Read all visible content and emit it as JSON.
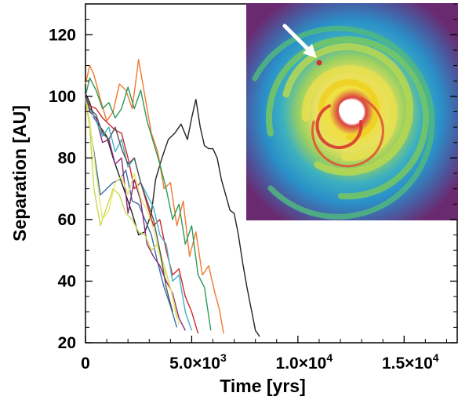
{
  "chart_data": {
    "type": "line",
    "xlabel": "Time [yrs]",
    "ylabel": "Separation [AU]",
    "xlim": [
      0,
      17500
    ],
    "ylim": [
      20,
      130
    ],
    "x_ticks": [
      {
        "value": 0,
        "mantissa": "0",
        "exponent": ""
      },
      {
        "value": 5000,
        "mantissa": "5.0×10",
        "exponent": "3"
      },
      {
        "value": 10000,
        "mantissa": "1.0×10",
        "exponent": "4"
      },
      {
        "value": 15000,
        "mantissa": "1.5×10",
        "exponent": "4"
      }
    ],
    "y_ticks": [
      {
        "value": 20,
        "label": "20"
      },
      {
        "value": 40,
        "label": "40"
      },
      {
        "value": 60,
        "label": "60"
      },
      {
        "value": 80,
        "label": "80"
      },
      {
        "value": 100,
        "label": "100"
      },
      {
        "value": 120,
        "label": "120"
      }
    ],
    "grid": false,
    "legend": "none",
    "inset": {
      "description_shown": false,
      "arrow_color": "#ffffff"
    },
    "series": [
      {
        "color": "#222222",
        "x": [
          0,
          200,
          400,
          700,
          1000,
          1300,
          1600,
          1900,
          2200,
          2500,
          2800,
          3100,
          3300,
          3600,
          3900,
          4200,
          4500,
          4800,
          5000,
          5200,
          5400,
          5600,
          5800,
          6000,
          6200,
          6400,
          6600,
          6800,
          7000,
          7200,
          7400,
          7600,
          7800,
          8000,
          8200
        ],
        "y": [
          101,
          98,
          93,
          90,
          87,
          80,
          74,
          68,
          62,
          55,
          56,
          62,
          73,
          80,
          86,
          88,
          91,
          86,
          93,
          99,
          90,
          84,
          83,
          83,
          80,
          73,
          68,
          63,
          62,
          55,
          46,
          38,
          31,
          24,
          22
        ]
      },
      {
        "color": "#f07a30",
        "x": [
          0,
          200,
          400,
          700,
          1000,
          1300,
          1600,
          1900,
          2200,
          2500,
          2800,
          3100,
          3400,
          3700,
          4000,
          4300,
          4600,
          4900,
          5200,
          5500,
          5800,
          6100,
          6300,
          6500
        ],
        "y": [
          104,
          110,
          107,
          99,
          92,
          95,
          104,
          102,
          96,
          112,
          100,
          88,
          82,
          70,
          72,
          58,
          66,
          48,
          56,
          42,
          45,
          36,
          31,
          23
        ]
      },
      {
        "color": "#2a9a5a",
        "x": [
          0,
          200,
          500,
          800,
          1100,
          1400,
          1700,
          2000,
          2300,
          2600,
          2900,
          3200,
          3500,
          3800,
          4100,
          4400,
          4700,
          5000,
          5300,
          5600,
          5900
        ],
        "y": [
          100,
          106,
          102,
          96,
          98,
          93,
          96,
          103,
          96,
          102,
          92,
          85,
          78,
          70,
          60,
          65,
          52,
          58,
          42,
          38,
          24
        ]
      },
      {
        "color": "#3b6ea8",
        "x": [
          0,
          200,
          400,
          700,
          1000,
          1300,
          1600,
          1900,
          2200,
          2500,
          2800,
          3100,
          3400,
          3700,
          4000,
          4300
        ],
        "y": [
          101,
          90,
          82,
          68,
          70,
          72,
          73,
          76,
          66,
          65,
          60,
          55,
          46,
          38,
          32,
          25
        ]
      },
      {
        "color": "#cc2a2a",
        "x": [
          0,
          200,
          500,
          800,
          1100,
          1400,
          1700,
          2000,
          2300,
          2600,
          2900,
          3200,
          3500,
          3800,
          4100,
          4400,
          4700,
          5000,
          5300
        ],
        "y": [
          100,
          97,
          96,
          93,
          91,
          89,
          88,
          80,
          70,
          72,
          65,
          58,
          60,
          50,
          42,
          44,
          35,
          30,
          23
        ]
      },
      {
        "color": "#8a2a7a",
        "x": [
          0,
          200,
          500,
          800,
          1100,
          1400,
          1700,
          2000,
          2300,
          2600,
          2900,
          3200,
          3500,
          3800,
          4100,
          4400,
          4700
        ],
        "y": [
          101,
          95,
          93,
          85,
          86,
          78,
          80,
          62,
          73,
          66,
          52,
          48,
          45,
          40,
          36,
          28,
          24
        ]
      },
      {
        "color": "#c8d850",
        "x": [
          0,
          200,
          400,
          700,
          1000,
          1300,
          1600,
          1900,
          2200,
          2500,
          2800,
          3100,
          3400,
          3700,
          4000,
          4300
        ],
        "y": [
          99,
          90,
          70,
          58,
          64,
          70,
          68,
          62,
          60,
          56,
          55,
          50,
          52,
          45,
          38,
          28
        ]
      },
      {
        "color": "#e8e870",
        "x": [
          0,
          200,
          500,
          800,
          1100,
          1400,
          1700,
          2000,
          2300,
          2600,
          2900,
          3200,
          3500,
          3800,
          4100,
          4400
        ],
        "y": [
          100,
          92,
          75,
          60,
          63,
          72,
          74,
          68,
          75,
          67,
          63,
          57,
          48,
          42,
          35,
          26
        ]
      },
      {
        "color": "#44b0c8",
        "x": [
          0,
          200,
          500,
          800,
          1100,
          1400,
          1700,
          2000,
          2300,
          2600,
          2900,
          3200,
          3500,
          3800,
          4100,
          4400,
          4700,
          5000
        ],
        "y": [
          99,
          96,
          92,
          87,
          90,
          82,
          86,
          77,
          80,
          72,
          68,
          64,
          55,
          52,
          40,
          42,
          30,
          24
        ]
      },
      {
        "color": "#555555",
        "x": [
          0,
          200,
          500,
          800,
          1100,
          1400,
          1700,
          2000,
          2300,
          2600,
          2900,
          3200,
          3500,
          3800,
          4100
        ],
        "y": [
          100,
          96,
          94,
          88,
          86,
          90,
          83,
          78,
          80,
          72,
          66,
          60,
          50,
          38,
          30
        ]
      }
    ]
  }
}
